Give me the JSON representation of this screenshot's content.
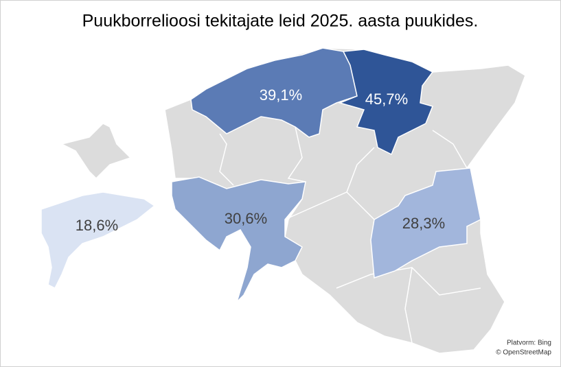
{
  "chart_data": {
    "type": "map",
    "title": "Puukborrelioosi tekitajate leid 2025. aasta puukides.",
    "values": [
      39.1,
      45.7,
      30.6,
      28.3,
      18.6
    ],
    "value_labels": [
      "39,1%",
      "45,7%",
      "30,6%",
      "28,3%",
      "18,6%"
    ],
    "colors": [
      "#5b7bb5",
      "#2f5597",
      "#8ea6d0",
      "#a2b6dc",
      "#dae3f3"
    ],
    "attribution": [
      "Platvorm: Bing",
      "© OpenStreetMap"
    ]
  }
}
